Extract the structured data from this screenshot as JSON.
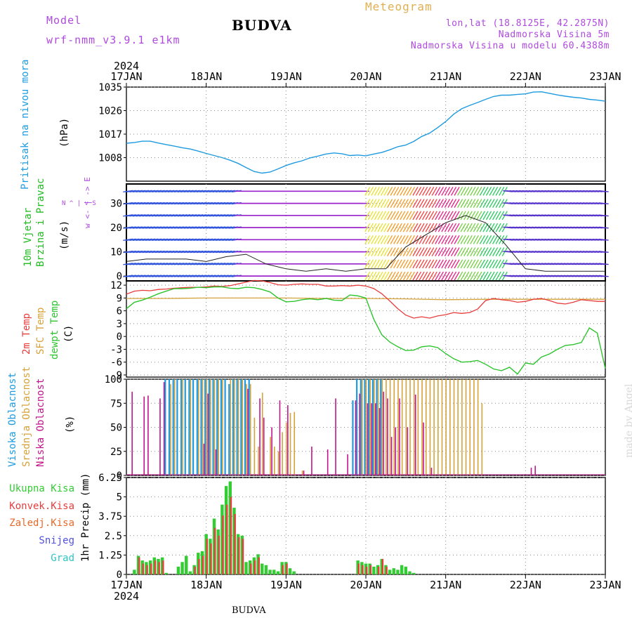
{
  "header": {
    "model_label": "Model",
    "model_run": "wrf-nmm_v3.9.1 e1km",
    "station": "BUDVA",
    "product": "Meteogram",
    "coords": "lon,lat (18.8125E, 42.2875N)",
    "elevation": "Nadmorska Visina 5m",
    "model_elevation": "Nadmorska Visina u modelu 60.4388m",
    "footer_station": "BUDVA",
    "credit": "made by Angel"
  },
  "colors": {
    "pressure": "#1e9be0",
    "temp2m": "#e83c3c",
    "sfc_temp": "#d6a23a",
    "dewpt": "#2ec42e",
    "cloud_high": "#1e9be0",
    "cloud_mid": "#d6a23a",
    "cloud_low": "#c0168a",
    "precip_total": "#33cc33",
    "precip_conv": "#e83c3c",
    "precip_frozen": "#e86a2a",
    "snow": "#5050e0",
    "hail": "#2ec4c4",
    "wind_label": "#22bb22",
    "dir_label": "#b04adf"
  },
  "time_axis": {
    "year": "2024",
    "ticks": [
      "17JAN",
      "18JAN",
      "19JAN",
      "20JAN",
      "21JAN",
      "22JAN",
      "23JAN"
    ]
  },
  "chart_data": [
    {
      "type": "line",
      "id": "pressure",
      "ylabel": "Pritisak na nivou mora",
      "unit": "(hPa)",
      "ylim": [
        999,
        1035
      ],
      "yticks": [
        1008,
        1017,
        1026,
        1035
      ],
      "grid": true,
      "series": [
        {
          "name": "Pritisak na nivou mora",
          "x": [
            0,
            0.1,
            0.2,
            0.3,
            0.4,
            0.5,
            0.6,
            0.7,
            0.8,
            0.9,
            1.0,
            1.1,
            1.2,
            1.3,
            1.4,
            1.5,
            1.6,
            1.7,
            1.8,
            1.9,
            2.0,
            2.1,
            2.2,
            2.3,
            2.4,
            2.5,
            2.6,
            2.7,
            2.8,
            2.9,
            3.0,
            3.1,
            3.2,
            3.3,
            3.4,
            3.5,
            3.6,
            3.7,
            3.8,
            3.9,
            4.0,
            4.1,
            4.2,
            4.3,
            4.4,
            4.5,
            4.6,
            4.7,
            4.8,
            4.9,
            5.0,
            5.1,
            5.2,
            5.3,
            5.4,
            5.5,
            5.6,
            5.7,
            5.8,
            5.9,
            6.0
          ],
          "values": [
            1013.5,
            1013.8,
            1014.3,
            1014.3,
            1013.6,
            1013.0,
            1012.4,
            1011.8,
            1011.3,
            1010.5,
            1009.6,
            1008.8,
            1008.0,
            1007.0,
            1005.8,
            1004.2,
            1002.7,
            1002.1,
            1002.5,
            1003.7,
            1005.0,
            1006.0,
            1006.8,
            1007.9,
            1008.6,
            1009.4,
            1009.8,
            1009.5,
            1008.8,
            1009.0,
            1008.7,
            1009.4,
            1010.0,
            1011.0,
            1012.2,
            1012.8,
            1014.2,
            1016.1,
            1017.4,
            1019.5,
            1021.8,
            1024.6,
            1026.7,
            1028.0,
            1029.1,
            1030.3,
            1031.4,
            1031.9,
            1031.9,
            1032.2,
            1032.4,
            1033.1,
            1033.2,
            1032.6,
            1032.0,
            1031.5,
            1031.1,
            1030.8,
            1030.3,
            1030.0,
            1029.6
          ]
        }
      ]
    },
    {
      "type": "line",
      "id": "wind",
      "ylabel_top": "10m Vjetar",
      "ylabel_bottom": "Brzina i Pravac",
      "unit": "(m/s)",
      "direction_legend": "w <- | -> E",
      "direction_legend_ns": "N ^ | v S",
      "ylim": [
        -2,
        38
      ],
      "yticks": [
        0,
        10,
        20,
        30
      ],
      "grid": true,
      "series": [
        {
          "name": "wind speed",
          "x": [
            0,
            0.25,
            0.5,
            0.75,
            1.0,
            1.25,
            1.5,
            1.75,
            2.0,
            2.25,
            2.5,
            2.75,
            3.0,
            3.25,
            3.5,
            3.75,
            4.0,
            4.25,
            4.5,
            4.75,
            5.0,
            5.25,
            5.5,
            5.75,
            6.0
          ],
          "values": [
            6,
            7,
            7,
            7,
            6,
            8,
            9,
            5,
            3,
            2,
            3,
            2,
            3,
            3,
            12,
            17,
            22,
            25,
            22,
            13,
            3,
            2,
            2,
            2,
            2
          ]
        }
      ]
    },
    {
      "type": "line",
      "id": "temperature",
      "labels": [
        "2m Temp",
        "SFC Temp",
        "dewpt Temp"
      ],
      "unit": "(C)",
      "ylim": [
        -9.5,
        13
      ],
      "yticks": [
        -9,
        -6,
        -3,
        0,
        3,
        6,
        9,
        12
      ],
      "grid": true,
      "series": [
        {
          "name": "2m Temp",
          "x": [
            0,
            0.1,
            0.2,
            0.3,
            0.4,
            0.5,
            0.6,
            0.7,
            0.8,
            0.9,
            1.0,
            1.1,
            1.2,
            1.3,
            1.4,
            1.5,
            1.6,
            1.7,
            1.8,
            1.9,
            2.0,
            2.1,
            2.2,
            2.3,
            2.4,
            2.5,
            2.6,
            2.7,
            2.8,
            2.9,
            3.0,
            3.1,
            3.2,
            3.3,
            3.4,
            3.5,
            3.6,
            3.7,
            3.8,
            3.9,
            4.0,
            4.1,
            4.2,
            4.3,
            4.4,
            4.5,
            4.6,
            4.7,
            4.8,
            4.9,
            5.0,
            5.1,
            5.2,
            5.3,
            5.4,
            5.5,
            5.6,
            5.7,
            5.8,
            5.9,
            6.0
          ],
          "values": [
            9.9,
            10.6,
            10.8,
            10.7,
            11.0,
            11.1,
            11.3,
            11.4,
            11.5,
            11.5,
            11.6,
            11.8,
            11.7,
            11.9,
            12.3,
            12.7,
            13.1,
            13.0,
            12.6,
            12.1,
            12.0,
            12.2,
            12.3,
            12.2,
            12.2,
            11.8,
            11.8,
            11.9,
            11.8,
            12.0,
            11.8,
            11.2,
            10.0,
            8.3,
            6.5,
            5.0,
            4.3,
            4.6,
            4.3,
            4.8,
            5.1,
            5.6,
            5.4,
            5.6,
            6.4,
            8.4,
            8.9,
            8.6,
            8.4,
            8.0,
            8.2,
            8.7,
            8.9,
            8.4,
            7.8,
            7.6,
            8.0,
            8.6,
            8.4,
            8.2,
            8.2
          ]
        },
        {
          "name": "SFC Temp",
          "x": [
            0,
            0.5,
            1.0,
            1.5,
            2.0,
            2.5,
            3.0,
            3.5,
            4.0,
            4.5,
            5.0,
            5.5,
            6.0
          ],
          "values": [
            8.9,
            8.9,
            9.0,
            9.0,
            9.0,
            8.9,
            8.9,
            8.8,
            8.6,
            8.7,
            8.7,
            8.7,
            8.7
          ]
        },
        {
          "name": "dewpt Temp",
          "x": [
            0,
            0.1,
            0.2,
            0.3,
            0.4,
            0.5,
            0.6,
            0.7,
            0.8,
            0.9,
            1.0,
            1.1,
            1.2,
            1.3,
            1.4,
            1.5,
            1.6,
            1.7,
            1.8,
            1.9,
            2.0,
            2.1,
            2.2,
            2.3,
            2.4,
            2.5,
            2.6,
            2.7,
            2.8,
            2.9,
            3.0,
            3.1,
            3.2,
            3.3,
            3.4,
            3.5,
            3.6,
            3.7,
            3.8,
            3.9,
            4.0,
            4.1,
            4.2,
            4.3,
            4.4,
            4.5,
            4.6,
            4.7,
            4.8,
            4.9,
            5.0,
            5.1,
            5.2,
            5.3,
            5.4,
            5.5,
            5.6,
            5.7,
            5.8,
            5.9,
            6.0
          ],
          "values": [
            6.5,
            8.0,
            8.5,
            9.2,
            10.0,
            10.6,
            11.2,
            11.2,
            11.3,
            11.5,
            11.4,
            11.6,
            11.6,
            11.3,
            11.2,
            11.5,
            11.4,
            11.0,
            10.4,
            9.0,
            8.1,
            8.2,
            8.6,
            8.8,
            8.6,
            8.9,
            8.5,
            8.4,
            9.7,
            9.5,
            9.0,
            4.0,
            0.4,
            -1.3,
            -2.4,
            -3.3,
            -3.2,
            -2.4,
            -2.2,
            -2.6,
            -4.0,
            -5.2,
            -6.0,
            -5.9,
            -5.6,
            -6.5,
            -7.6,
            -8.0,
            -7.2,
            -8.8,
            -6.2,
            -6.5,
            -4.8,
            -4.1,
            -3.0,
            -2.1,
            -1.9,
            -1.4,
            2.0,
            0.8,
            -7.5
          ]
        }
      ]
    },
    {
      "type": "bar",
      "id": "clouds",
      "labels": [
        "Visoka Oblacnost",
        "Srednja Oblacnost",
        "Niska Oblacnost"
      ],
      "unit": "(%)",
      "ylim": [
        0,
        100
      ],
      "yticks": [
        0,
        25,
        50,
        75,
        100
      ],
      "grid": true,
      "series": [
        {
          "name": "Visoka Oblacnost",
          "x": [
            0.5,
            0.55,
            0.6,
            0.65,
            0.7,
            0.75,
            0.8,
            0.85,
            0.9,
            0.95,
            1.0,
            1.05,
            1.1,
            1.15,
            1.2,
            1.25,
            1.3,
            1.35,
            1.4,
            1.45,
            1.5,
            1.55,
            2.85,
            2.9,
            2.95,
            3.0,
            3.05,
            3.1,
            3.15,
            3.2
          ],
          "values": [
            100,
            100,
            100,
            100,
            100,
            100,
            100,
            100,
            100,
            100,
            100,
            100,
            100,
            100,
            100,
            100,
            95,
            100,
            100,
            100,
            100,
            100,
            78,
            100,
            100,
            100,
            100,
            100,
            100,
            100
          ]
        },
        {
          "name": "Srednja Oblacnost",
          "x": [
            0.55,
            0.6,
            0.7,
            0.8,
            0.9,
            0.95,
            1.0,
            1.05,
            1.1,
            1.15,
            1.2,
            1.3,
            1.35,
            1.4,
            1.45,
            1.5,
            1.55,
            1.6,
            1.65,
            1.7,
            1.8,
            1.85,
            1.9,
            1.95,
            2.0,
            2.05,
            2.1,
            2.2,
            2.95,
            3.0,
            3.05,
            3.1,
            3.15,
            3.2,
            3.25,
            3.3,
            3.35,
            3.4,
            3.45,
            3.5,
            3.55,
            3.6,
            3.65,
            3.7,
            3.75,
            3.8,
            3.85,
            3.9,
            3.95,
            4.0,
            4.05,
            4.1,
            4.15,
            4.2,
            4.25,
            4.3,
            4.35,
            4.4,
            4.45
          ],
          "values": [
            95,
            100,
            100,
            100,
            100,
            100,
            100,
            100,
            100,
            100,
            100,
            100,
            100,
            100,
            100,
            95,
            95,
            60,
            30,
            86,
            40,
            30,
            25,
            45,
            55,
            65,
            66,
            5,
            100,
            100,
            100,
            100,
            100,
            100,
            100,
            100,
            100,
            100,
            100,
            100,
            100,
            100,
            100,
            100,
            100,
            100,
            100,
            100,
            100,
            100,
            100,
            100,
            100,
            100,
            100,
            100,
            100,
            100,
            75
          ]
        },
        {
          "name": "Niska Oblacnost",
          "x": [
            0.05,
            0.2,
            0.25,
            0.4,
            0.45,
            0.95,
            1.0,
            1.1,
            1.5,
            1.65,
            1.7,
            1.8,
            1.9,
            2.0,
            2.2,
            2.3,
            2.5,
            2.6,
            2.75,
            2.85,
            2.9,
            3.0,
            3.05,
            3.1,
            3.15,
            3.2,
            3.25,
            3.3,
            3.35,
            3.4,
            3.5,
            3.6,
            3.7,
            3.8,
            5.05,
            5.1
          ],
          "values": [
            87,
            82,
            83,
            80,
            97,
            33,
            85,
            27,
            90,
            80,
            60,
            50,
            78,
            73,
            5,
            30,
            27,
            80,
            22,
            78,
            85,
            75,
            75,
            75,
            70,
            87,
            80,
            40,
            50,
            80,
            50,
            84,
            55,
            8,
            8,
            10
          ]
        }
      ]
    },
    {
      "type": "bar",
      "id": "precip",
      "labels": [
        "Ukupna Kisa",
        "Konvek.Kisa",
        "Zaledj.Kisa",
        "Snijeg",
        "Grad"
      ],
      "unit": "1hr Precip (mm)",
      "ylim": [
        0,
        6.25
      ],
      "yticks": [
        0,
        1.25,
        2.5,
        3.75,
        5,
        6.25
      ],
      "grid": true,
      "series": [
        {
          "name": "Ukupna Kisa",
          "x": [
            0.1,
            0.15,
            0.2,
            0.25,
            0.3,
            0.35,
            0.4,
            0.45,
            0.5,
            0.55,
            0.65,
            0.7,
            0.75,
            0.8,
            0.85,
            0.9,
            0.95,
            1.0,
            1.05,
            1.1,
            1.15,
            1.2,
            1.25,
            1.3,
            1.35,
            1.4,
            1.45,
            1.5,
            1.55,
            1.6,
            1.65,
            1.7,
            1.75,
            1.8,
            1.85,
            1.9,
            1.95,
            2.0,
            2.05,
            2.1,
            2.15,
            2.2,
            2.3,
            2.35,
            2.4,
            2.45,
            2.5,
            2.55,
            2.6,
            2.65,
            2.7,
            2.75,
            2.8,
            2.85,
            2.9,
            2.95,
            3.0,
            3.05,
            3.1,
            3.15,
            3.2,
            3.25,
            3.3,
            3.35,
            3.4,
            3.45,
            3.5,
            3.55,
            3.6,
            3.65
          ],
          "values": [
            0.3,
            1.2,
            0.9,
            0.8,
            0.9,
            1.1,
            1.0,
            1.1,
            0.1,
            0.0,
            0.5,
            0.8,
            1.2,
            0.2,
            0.6,
            1.4,
            1.5,
            2.6,
            2.3,
            3.6,
            2.9,
            4.5,
            5.7,
            6.0,
            4.3,
            2.6,
            2.5,
            0.8,
            0.9,
            1.1,
            1.3,
            0.7,
            0.6,
            0.3,
            0.3,
            0.2,
            0.8,
            0.8,
            0.4,
            0.2,
            0.0,
            0.0,
            0.0,
            0.0,
            0.0,
            0.0,
            0.0,
            0.0,
            0.0,
            0.0,
            0.0,
            0.0,
            0.0,
            0.0,
            0.9,
            0.8,
            0.7,
            0.7,
            0.5,
            0.6,
            1.0,
            0.6,
            0.3,
            0.4,
            0.3,
            0.6,
            0.5,
            0.2,
            0.1,
            0.0
          ]
        },
        {
          "name": "Konvek.Kisa",
          "x": [
            0.15,
            0.2,
            0.25,
            0.3,
            0.35,
            0.4,
            0.45,
            0.85,
            0.9,
            0.95,
            1.0,
            1.05,
            1.1,
            1.15,
            1.2,
            1.25,
            1.3,
            1.35,
            1.4,
            1.45,
            1.55,
            1.6,
            1.65,
            1.95,
            2.0,
            2.9,
            2.95,
            3.0,
            3.05,
            3.15,
            3.2,
            3.25
          ],
          "values": [
            1.1,
            0.7,
            0.6,
            0.7,
            0.9,
            0.8,
            0.9,
            0.5,
            1.0,
            1.2,
            2.3,
            2.0,
            3.0,
            2.5,
            3.8,
            4.5,
            5.0,
            3.9,
            2.4,
            2.3,
            0.7,
            0.9,
            1.1,
            0.6,
            0.7,
            0.7,
            0.6,
            0.5,
            0.6,
            0.5,
            1.0,
            0.5
          ]
        }
      ]
    }
  ]
}
